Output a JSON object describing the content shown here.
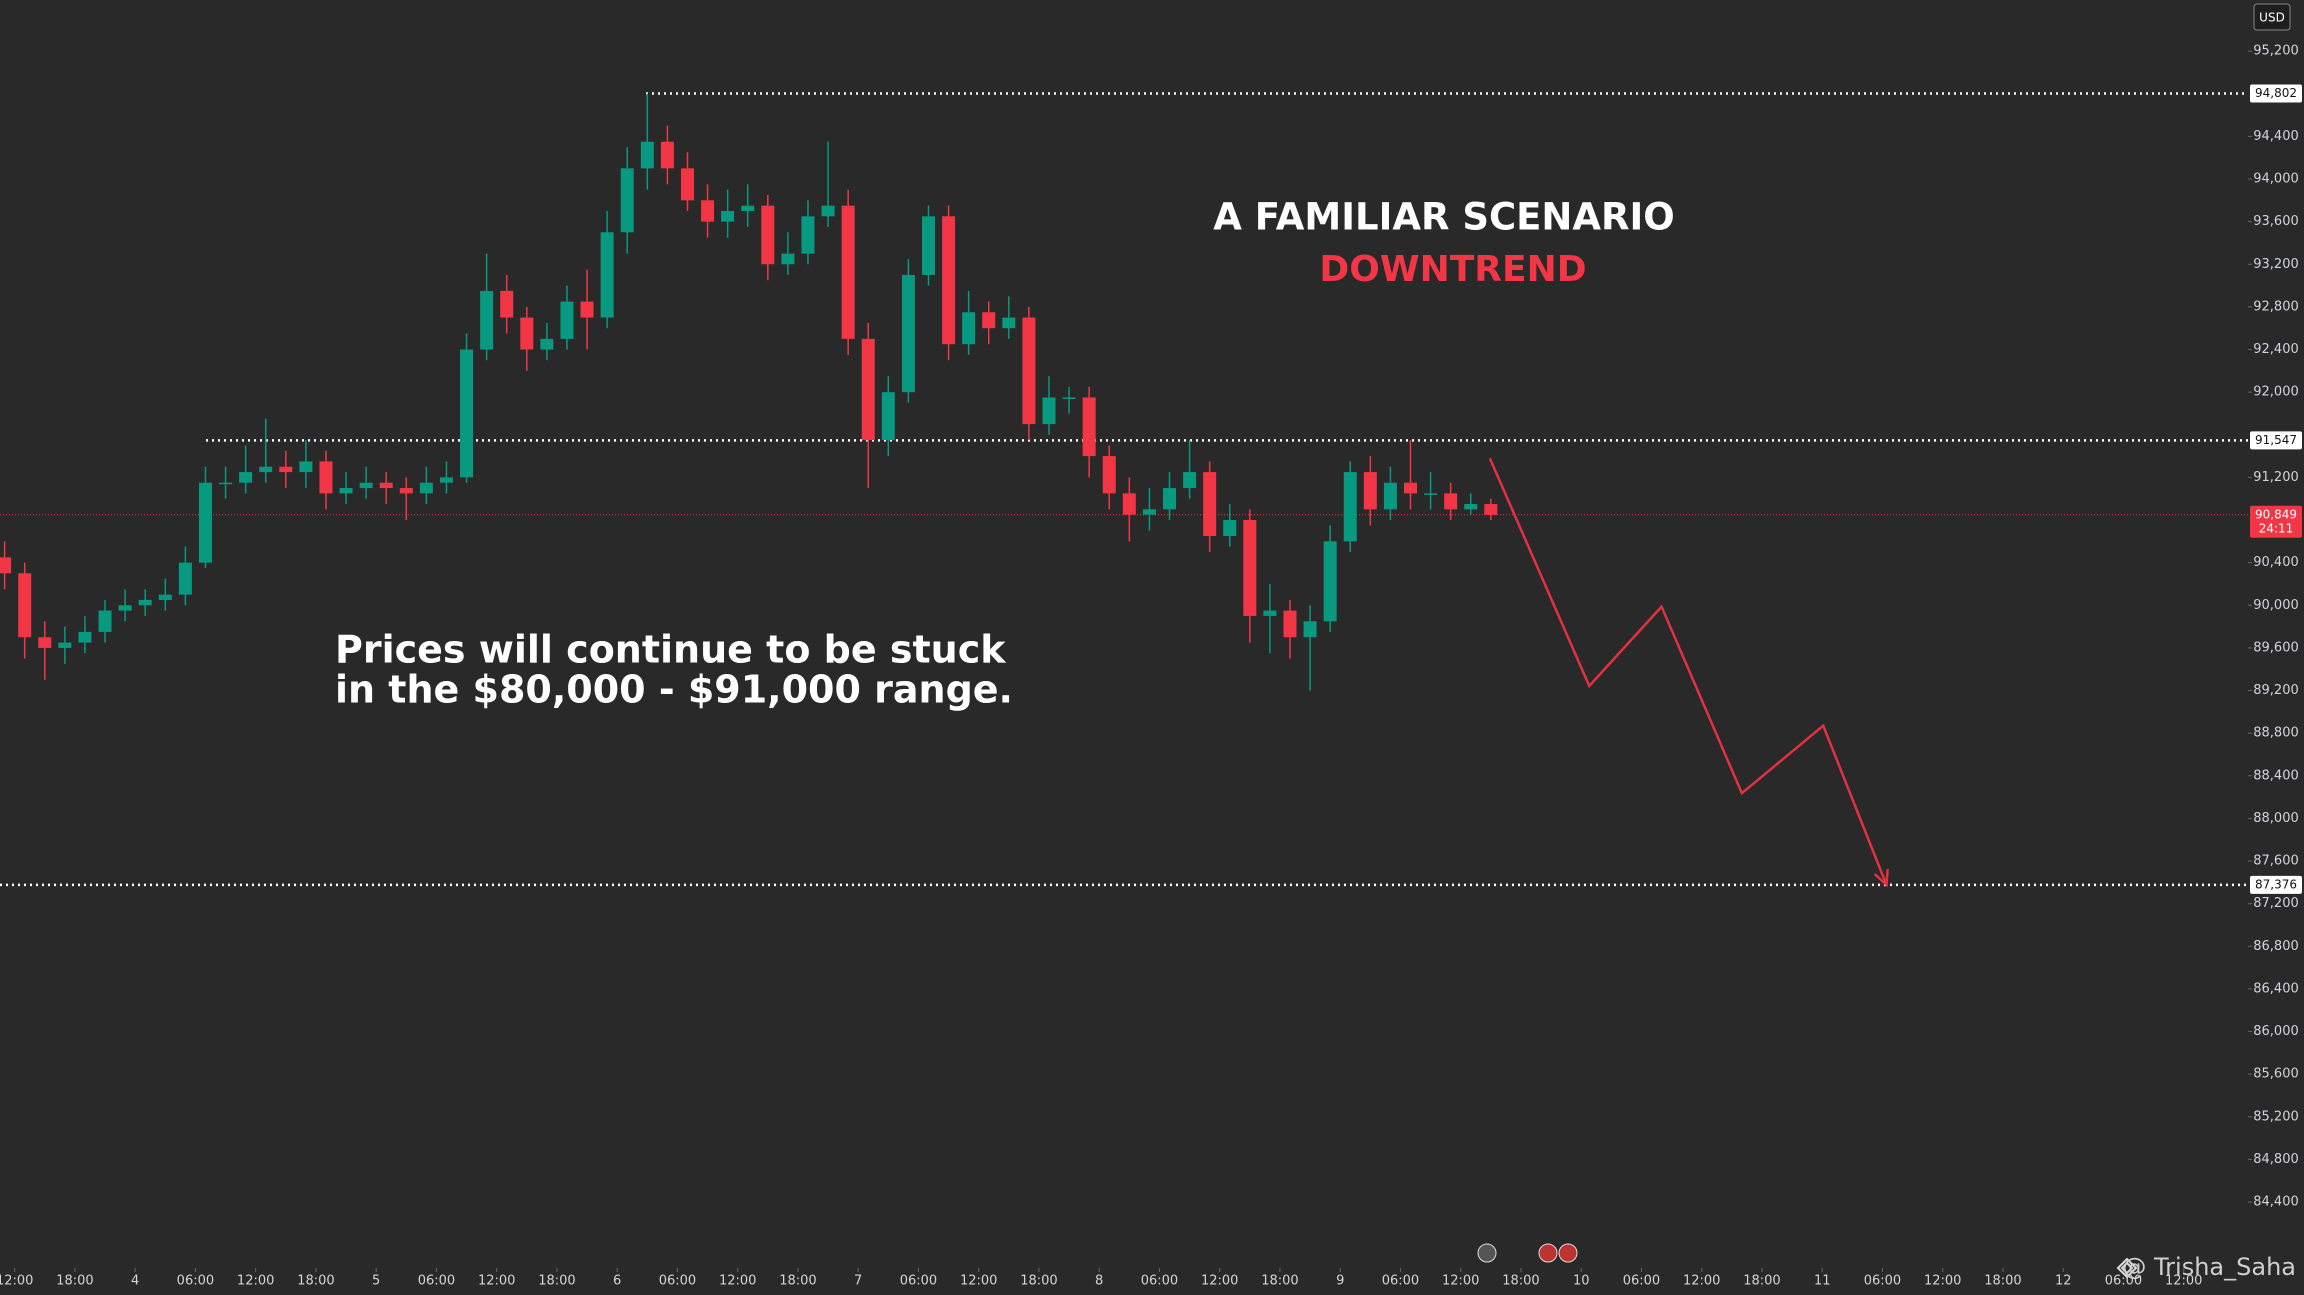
{
  "chart_data": {
    "type": "candlestick",
    "currency": "USD",
    "x": [
      -1,
      1,
      3,
      5,
      7,
      9,
      11,
      13,
      15,
      17,
      19,
      21,
      23,
      25,
      27,
      29,
      31,
      33,
      35,
      37,
      39,
      41,
      43,
      45,
      47,
      49,
      51,
      53,
      55,
      57,
      59,
      61,
      63,
      65,
      67,
      69,
      71,
      73,
      75,
      77,
      79,
      81,
      83,
      85,
      87,
      89,
      91,
      93,
      95,
      97,
      99,
      101,
      103,
      105,
      107,
      109,
      111,
      113,
      115,
      117,
      119,
      121,
      123,
      125,
      127,
      129,
      131,
      133,
      135,
      137,
      139,
      141,
      143,
      145,
      147
    ],
    "open": [
      90450,
      90300,
      89700,
      89600,
      89650,
      89750,
      89950,
      90000,
      90050,
      90100,
      90400,
      91150,
      91150,
      91250,
      91300,
      91250,
      91350,
      91050,
      91100,
      91150,
      91100,
      91050,
      91150,
      91200,
      92400,
      92950,
      92700,
      92400,
      92500,
      92850,
      92700,
      93500,
      94100,
      94350,
      94100,
      93800,
      93600,
      93700,
      93750,
      93200,
      93300,
      93650,
      93750,
      92500,
      91550,
      92000,
      93100,
      93650,
      92450,
      92750,
      92600,
      92700,
      91700,
      91950,
      91950,
      91400,
      91050,
      90850,
      90900,
      91100,
      91250,
      90650,
      90800,
      89900,
      89950,
      89700,
      89850,
      90600,
      91250,
      90900,
      91150,
      91050,
      91050,
      90900,
      90950
    ],
    "high": [
      90600,
      90400,
      89850,
      89800,
      89900,
      90050,
      90150,
      90150,
      90250,
      90550,
      91300,
      91300,
      91500,
      91750,
      91450,
      91550,
      91450,
      91250,
      91300,
      91250,
      91200,
      91300,
      91350,
      92550,
      93300,
      93100,
      92800,
      92650,
      93000,
      93150,
      93700,
      94300,
      94802,
      94500,
      94250,
      93950,
      93900,
      93950,
      93850,
      93500,
      93800,
      94350,
      93900,
      92650,
      92150,
      93250,
      93750,
      93750,
      92950,
      92850,
      92900,
      92800,
      92150,
      92050,
      92050,
      91500,
      91200,
      91100,
      91250,
      91550,
      91350,
      90950,
      90900,
      90200,
      90050,
      90000,
      90750,
      91350,
      91400,
      91300,
      91550,
      91250,
      91150,
      91050,
      91000
    ],
    "low": [
      90150,
      89500,
      89300,
      89450,
      89550,
      89650,
      89850,
      89900,
      89950,
      90000,
      90350,
      91000,
      91050,
      91150,
      91100,
      91100,
      90900,
      90950,
      91000,
      90950,
      90800,
      90950,
      91050,
      91150,
      92300,
      92550,
      92200,
      92300,
      92400,
      92400,
      92600,
      93300,
      93900,
      93950,
      93700,
      93450,
      93450,
      93550,
      93050,
      93100,
      93200,
      93550,
      92350,
      91100,
      91400,
      91900,
      93000,
      92300,
      92350,
      92450,
      92500,
      91550,
      91600,
      91800,
      91200,
      90900,
      90600,
      90700,
      90800,
      91000,
      90500,
      90550,
      89650,
      89550,
      89500,
      89200,
      89750,
      90500,
      90750,
      90800,
      90900,
      90900,
      90800,
      90850,
      90800
    ],
    "close": [
      90300,
      89700,
      89600,
      89650,
      89750,
      89950,
      90000,
      90050,
      90100,
      90400,
      91150,
      91150,
      91250,
      91300,
      91250,
      91350,
      91050,
      91100,
      91150,
      91100,
      91050,
      91150,
      91200,
      92400,
      92950,
      92700,
      92400,
      92500,
      92850,
      92700,
      93500,
      94100,
      94350,
      94100,
      93800,
      93600,
      93700,
      93750,
      93200,
      93300,
      93650,
      93750,
      92500,
      91550,
      92000,
      93100,
      93650,
      92450,
      92750,
      92600,
      92700,
      91700,
      91950,
      91950,
      91400,
      91050,
      90850,
      90900,
      91100,
      91250,
      90650,
      90800,
      89900,
      89950,
      89700,
      89850,
      90600,
      91250,
      90900,
      91150,
      91050,
      91050,
      90900,
      90950,
      90849
    ],
    "up_color": "#089981",
    "down_color": "#f23645",
    "xlim": [
      -1.46,
      222.4
    ],
    "ylim": [
      84250,
      95680
    ],
    "xticks": [
      {
        "value": 0,
        "label": "12:00"
      },
      {
        "value": 6,
        "label": "18:00"
      },
      {
        "value": 12,
        "label": "4"
      },
      {
        "value": 18,
        "label": "06:00"
      },
      {
        "value": 24,
        "label": "12:00"
      },
      {
        "value": 30,
        "label": "18:00"
      },
      {
        "value": 36,
        "label": "5"
      },
      {
        "value": 42,
        "label": "06:00"
      },
      {
        "value": 48,
        "label": "12:00"
      },
      {
        "value": 54,
        "label": "18:00"
      },
      {
        "value": 60,
        "label": "6"
      },
      {
        "value": 66,
        "label": "06:00"
      },
      {
        "value": 72,
        "label": "12:00"
      },
      {
        "value": 78,
        "label": "18:00"
      },
      {
        "value": 84,
        "label": "7"
      },
      {
        "value": 90,
        "label": "06:00"
      },
      {
        "value": 96,
        "label": "12:00"
      },
      {
        "value": 102,
        "label": "18:00"
      },
      {
        "value": 108,
        "label": "8"
      },
      {
        "value": 114,
        "label": "06:00"
      },
      {
        "value": 120,
        "label": "12:00"
      },
      {
        "value": 126,
        "label": "18:00"
      },
      {
        "value": 132,
        "label": "9"
      },
      {
        "value": 138,
        "label": "06:00"
      },
      {
        "value": 144,
        "label": "12:00"
      },
      {
        "value": 150,
        "label": "18:00"
      },
      {
        "value": 156,
        "label": "10"
      },
      {
        "value": 162,
        "label": "06:00"
      },
      {
        "value": 168,
        "label": "12:00"
      },
      {
        "value": 174,
        "label": "18:00"
      },
      {
        "value": 180,
        "label": "11"
      },
      {
        "value": 186,
        "label": "06:00"
      },
      {
        "value": 192,
        "label": "12:00"
      },
      {
        "value": 198,
        "label": "18:00"
      },
      {
        "value": 204,
        "label": "12"
      },
      {
        "value": 210,
        "label": "06:00"
      },
      {
        "value": 216,
        "label": "12:00"
      }
    ],
    "yticks": [
      {
        "value": 95200,
        "label": "95,200"
      },
      {
        "value": 94400,
        "label": "94,400"
      },
      {
        "value": 94000,
        "label": "94,000"
      },
      {
        "value": 93600,
        "label": "93,600"
      },
      {
        "value": 93200,
        "label": "93,200"
      },
      {
        "value": 92800,
        "label": "92,800"
      },
      {
        "value": 92400,
        "label": "92,400"
      },
      {
        "value": 92000,
        "label": "92,000"
      },
      {
        "value": 91200,
        "label": "91,200"
      },
      {
        "value": 90400,
        "label": "90,400"
      },
      {
        "value": 90000,
        "label": "90,000"
      },
      {
        "value": 89600,
        "label": "89,600"
      },
      {
        "value": 89200,
        "label": "89,200"
      },
      {
        "value": 88800,
        "label": "88,800"
      },
      {
        "value": 88400,
        "label": "88,400"
      },
      {
        "value": 88000,
        "label": "88,000"
      },
      {
        "value": 87600,
        "label": "87,600"
      },
      {
        "value": 87200,
        "label": "87,200"
      },
      {
        "value": 86800,
        "label": "86,800"
      },
      {
        "value": 86400,
        "label": "86,400"
      },
      {
        "value": 86000,
        "label": "86,000"
      },
      {
        "value": 85600,
        "label": "85,600"
      },
      {
        "value": 85200,
        "label": "85,200"
      },
      {
        "value": 84800,
        "label": "84,800"
      },
      {
        "value": 84400,
        "label": "84,400"
      }
    ],
    "levels": [
      {
        "value": 94802,
        "label": "94,802"
      },
      {
        "value": 91547,
        "label": "91,547"
      },
      {
        "value": 87376,
        "label": "87,376"
      }
    ],
    "current_price": {
      "value": 90849,
      "label": "90,849",
      "countdown": "24:11"
    },
    "annotations": {
      "title": "A FAMILIAR SCENARIO",
      "subtitle": "DOWNTREND",
      "note": [
        "Prices will continue to be stuck",
        "in the $80,000 - $91,000 range."
      ]
    },
    "projection": {
      "x": [
        146.9,
        156.8,
        164,
        172,
        180.1,
        186.4
      ],
      "values": [
        91380,
        89243,
        89987,
        88236,
        88870,
        87376
      ],
      "color": "#e0323f"
    },
    "watermark": "@ Trisha_Saha"
  }
}
